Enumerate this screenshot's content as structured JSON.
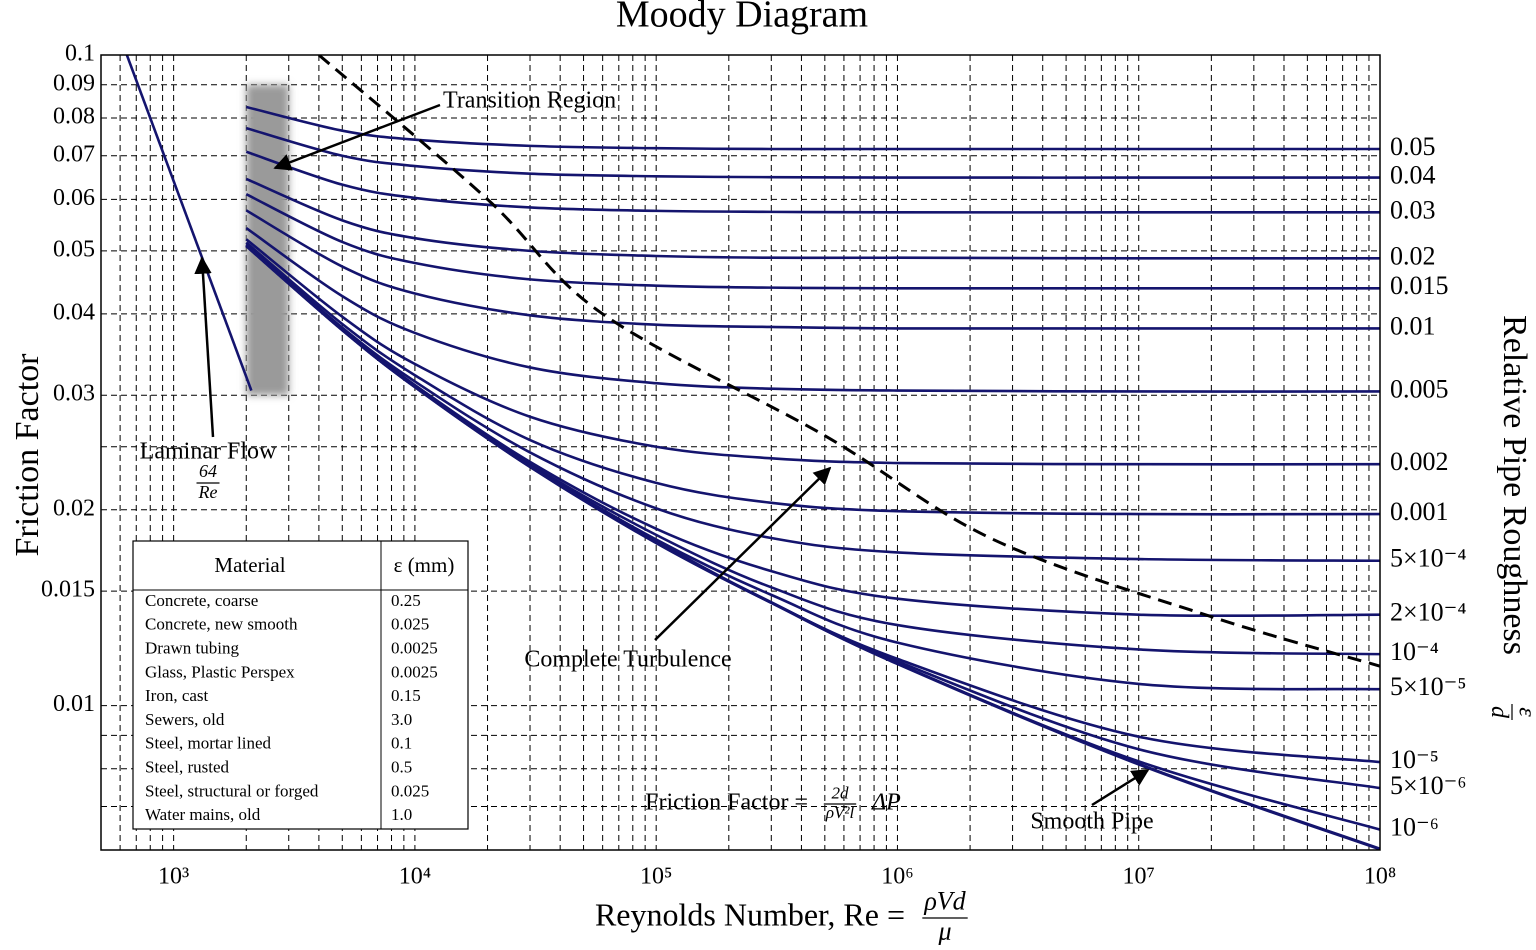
{
  "chart_data": {
    "type": "line",
    "title": "Moody Diagram",
    "xlabel": {
      "text": "Reynolds Number, Re =",
      "numerator": "ρVd",
      "denominator": "μ"
    },
    "ylabel": "Friction Factor",
    "y2label": {
      "text": "Relative Pipe Roughness",
      "numerator": "ε",
      "denominator": "d"
    },
    "log_x": true,
    "log_y": true,
    "grid": true,
    "xlim": [
      500,
      100000000
    ],
    "ylim": [
      0.006,
      0.1
    ],
    "xticks": [
      {
        "value": 1000,
        "label": "10³"
      },
      {
        "value": 10000,
        "label": "10⁴"
      },
      {
        "value": 100000,
        "label": "10⁵"
      },
      {
        "value": 1000000,
        "label": "10⁶"
      },
      {
        "value": 10000000,
        "label": "10⁷"
      },
      {
        "value": 100000000,
        "label": "10⁸"
      }
    ],
    "xminorticks": [
      600,
      700,
      800,
      900,
      2000,
      3000,
      4000,
      5000,
      6000,
      7000,
      8000,
      9000,
      20000,
      30000,
      40000,
      50000,
      60000,
      70000,
      80000,
      90000,
      200000,
      300000,
      400000,
      500000,
      600000,
      700000,
      800000,
      900000,
      2000000,
      3000000,
      4000000,
      5000000,
      6000000,
      7000000,
      8000000,
      9000000,
      20000000,
      30000000,
      40000000,
      50000000,
      60000000,
      70000000,
      80000000,
      90000000
    ],
    "yticks": [
      0.1,
      0.09,
      0.08,
      0.07,
      0.06,
      0.05,
      0.04,
      0.03,
      0.02,
      0.015,
      0.01
    ],
    "yminorticks": [
      0.025,
      0.009,
      0.008,
      0.007
    ],
    "x": [
      2000,
      5000,
      10000,
      30000,
      100000,
      300000,
      1000000,
      10000000,
      100000000
    ],
    "series": [
      {
        "name": "0.05",
        "color": "#14146e",
        "values": [
          0.0832,
          0.0765,
          0.0741,
          0.0725,
          0.0719,
          0.0717,
          0.0717,
          0.0717,
          0.0717
        ]
      },
      {
        "name": "0.04",
        "color": "#14146e",
        "values": [
          0.0772,
          0.07,
          0.0675,
          0.0657,
          0.0651,
          0.0649,
          0.0648,
          0.0648,
          0.0648
        ]
      },
      {
        "name": "0.03",
        "color": "#14146e",
        "values": [
          0.071,
          0.0632,
          0.0603,
          0.0583,
          0.0576,
          0.0574,
          0.0573,
          0.0573,
          0.0573
        ]
      },
      {
        "name": "0.02",
        "color": "#14146e",
        "values": [
          0.0645,
          0.0557,
          0.0523,
          0.05,
          0.0491,
          0.0488,
          0.0488,
          0.0487,
          0.0487
        ]
      },
      {
        "name": "0.015",
        "color": "#14146e",
        "values": [
          0.0611,
          0.0516,
          0.0479,
          0.0452,
          0.0442,
          0.0439,
          0.0438,
          0.0438,
          0.0438
        ]
      },
      {
        "name": "0.01",
        "color": "#14146e",
        "values": [
          0.0577,
          0.0473,
          0.043,
          0.0398,
          0.0385,
          0.0382,
          0.038,
          0.038,
          0.038
        ]
      },
      {
        "name": "0.005",
        "color": "#14146e",
        "values": [
          0.0542,
          0.0426,
          0.0374,
          0.0331,
          0.0313,
          0.0307,
          0.0305,
          0.0304,
          0.0304
        ]
      },
      {
        "name": "0.002",
        "color": "#14146e",
        "values": [
          0.0521,
          0.0396,
          0.0335,
          0.0278,
          0.025,
          0.024,
          0.0236,
          0.0235,
          0.0235
        ]
      },
      {
        "name": "0.001",
        "color": "#14146e",
        "values": [
          0.0515,
          0.0386,
          0.0322,
          0.0256,
          0.022,
          0.0205,
          0.0199,
          0.0197,
          0.0197
        ]
      },
      {
        "name": "5×10⁻⁴",
        "color": "#14146e",
        "values": [
          0.0512,
          0.0381,
          0.0315,
          0.0245,
          0.0201,
          0.0181,
          0.0172,
          0.0168,
          0.0167
        ]
      },
      {
        "name": "2×10⁻⁴",
        "color": "#14146e",
        "values": [
          0.051,
          0.0379,
          0.0311,
          0.0237,
          0.0187,
          0.0161,
          0.0146,
          0.0138,
          0.0138
        ]
      },
      {
        "name": "10⁻⁴",
        "color": "#14146e",
        "values": [
          0.0509,
          0.0378,
          0.031,
          0.0235,
          0.0183,
          0.0152,
          0.0133,
          0.0122,
          0.012
        ]
      },
      {
        "name": "5×10⁻⁵",
        "color": "#14146e",
        "values": [
          0.0509,
          0.0378,
          0.0309,
          0.0234,
          0.018,
          0.0148,
          0.0125,
          0.0108,
          0.0106
        ]
      },
      {
        "name": "10⁻⁵",
        "color": "#14146e",
        "values": [
          0.0509,
          0.0378,
          0.0309,
          0.0233,
          0.0179,
          0.0144,
          0.0118,
          0.00896,
          0.00819
        ]
      },
      {
        "name": "5×10⁻⁶",
        "color": "#14146e",
        "values": [
          0.0509,
          0.0378,
          0.0309,
          0.0233,
          0.0178,
          0.0144,
          0.0117,
          0.00857,
          0.00747
        ]
      },
      {
        "name": "10⁻⁶",
        "color": "#14146e",
        "values": [
          0.0509,
          0.0378,
          0.0309,
          0.0233,
          0.0178,
          0.0144,
          0.0116,
          0.00821,
          0.00645
        ]
      }
    ],
    "smooth": {
      "name": "Smooth Pipe",
      "color": "#14146e",
      "x": [
        2000,
        5000,
        10000,
        30000,
        100000,
        300000,
        1000000,
        10000000,
        100000000
      ],
      "values": [
        0.0509,
        0.0378,
        0.0309,
        0.0233,
        0.0178,
        0.0144,
        0.0116,
        0.00813,
        0.00602
      ]
    },
    "laminar": {
      "name": "Laminar Flow",
      "numerator": "64",
      "denominator": "Re",
      "color": "#14146e",
      "x": [
        640,
        2100
      ],
      "values": [
        0.1,
        0.0305
      ]
    },
    "complete_turbulence": {
      "name": "Complete Turbulence",
      "color": "#000000",
      "x": [
        4000,
        20000,
        60000,
        500000,
        2500000,
        20000000,
        100000000
      ],
      "values": [
        0.1,
        0.06,
        0.04,
        0.026,
        0.018,
        0.0137,
        0.0115
      ]
    },
    "transition_region": {
      "name": "Transition Region",
      "color": "#9a9a9a",
      "xrange": [
        2000,
        3000
      ],
      "yrange": [
        0.03,
        0.09
      ]
    },
    "formula": {
      "text": "Friction Factor =",
      "numerator": "2d",
      "denominator": "ρV²l",
      "suffix": "ΔP"
    },
    "table": {
      "header": [
        "Material",
        "ε (mm)"
      ],
      "rows": [
        [
          "Concrete, coarse",
          "0.25"
        ],
        [
          "Concrete, new smooth",
          "0.025"
        ],
        [
          "Drawn tubing",
          "0.0025"
        ],
        [
          "Glass, Plastic Perspex",
          "0.0025"
        ],
        [
          "Iron, cast",
          "0.15"
        ],
        [
          "Sewers, old",
          "3.0"
        ],
        [
          "Steel, mortar lined",
          "0.1"
        ],
        [
          "Steel, rusted",
          "0.5"
        ],
        [
          "Steel, structural or forged",
          "0.025"
        ],
        [
          "Water mains, old",
          "1.0"
        ]
      ]
    }
  }
}
